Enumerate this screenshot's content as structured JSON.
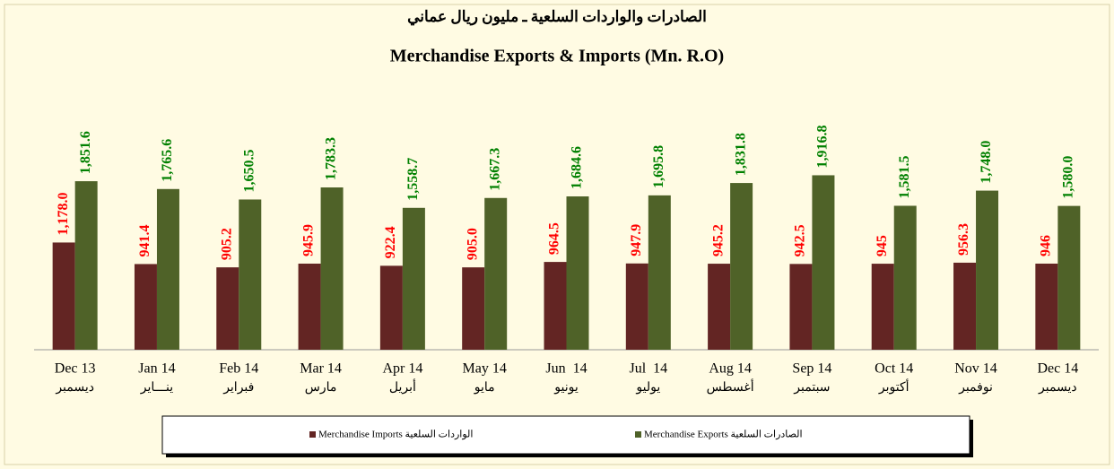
{
  "chart_data": {
    "type": "bar",
    "title": "الصادرات والواردات السلعية ـ مليون ريال عماني",
    "subtitle": "Merchandise Exports & Imports (Mn. R.O)",
    "categories": [
      "Dec 13",
      "Jan 14",
      "Feb 14",
      "Mar 14",
      "Apr 14",
      "May 14",
      "Jun  14",
      "Jul  14",
      "Aug 14",
      "Sep 14",
      "Oct 14",
      "Nov 14",
      "Dec 14"
    ],
    "categories_ar": [
      "ديسمبر",
      "ينـــاير",
      "فبراير",
      "مارس",
      "أبريل",
      "مايو",
      "يونيو",
      "يوليو",
      "أغسطس",
      "سبتمبر",
      "أكتوبر",
      "نوفمبر",
      "ديسمبر"
    ],
    "series": [
      {
        "name": "Merchandise Imports الواردات السلعية",
        "color": "#632523",
        "label_color": "#ff0000",
        "values": [
          1178.0,
          941.4,
          905.2,
          945.9,
          922.4,
          905.0,
          964.5,
          947.9,
          945.2,
          942.5,
          945,
          956.3,
          946
        ],
        "value_labels": [
          "1,178.0",
          "941.4",
          "905.2",
          "945.9",
          "922.4",
          "905.0",
          "964.5",
          "947.9",
          "945.2",
          "942.5",
          "945",
          "956.3",
          "946"
        ]
      },
      {
        "name": "Merchandise Exports الصادرات السلعية",
        "color": "#4f6228",
        "label_color": "#008000",
        "values": [
          1851.6,
          1765.6,
          1650.5,
          1783.3,
          1558.7,
          1667.3,
          1684.6,
          1695.8,
          1831.8,
          1916.8,
          1581.5,
          1748.0,
          1580.0
        ],
        "value_labels": [
          "1,851.6",
          "1,765.6",
          "1,650.5",
          "1,783.3",
          "1,558.7",
          "1,667.3",
          "1,684.6",
          "1,695.8",
          "1,831.8",
          "1,916.8",
          "1,581.5",
          "1,748.0",
          "1,580.0"
        ]
      }
    ],
    "ylim": [
      0,
      2000
    ],
    "legend": "bottom"
  }
}
